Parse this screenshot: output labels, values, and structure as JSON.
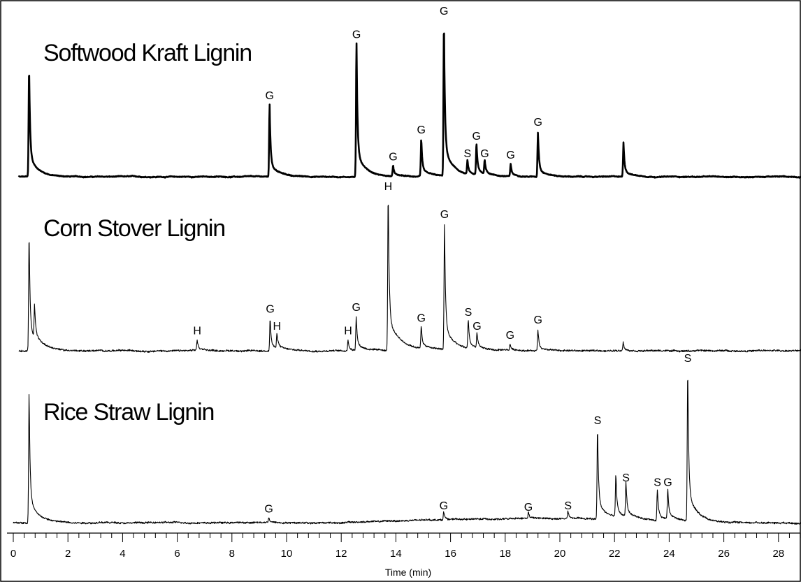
{
  "chart_data": {
    "type": "line",
    "title": "",
    "xlabel": "Time (min)",
    "ylabel": "",
    "xlim": [
      0,
      28.8
    ],
    "xticks": [
      0,
      2,
      4,
      6,
      8,
      10,
      12,
      14,
      16,
      18,
      20,
      22,
      24,
      26,
      28
    ],
    "series": [
      {
        "name": "Softwood Kraft Lignin",
        "peaks": [
          {
            "x": 0.58,
            "h": 0.71,
            "label": ""
          },
          {
            "x": 9.38,
            "h": 0.46,
            "label": "G"
          },
          {
            "x": 12.56,
            "h": 0.85,
            "label": "G"
          },
          {
            "x": 13.9,
            "h": 0.07,
            "label": "G"
          },
          {
            "x": 14.93,
            "h": 0.24,
            "label": "G"
          },
          {
            "x": 15.76,
            "h": 1.0,
            "label": "G"
          },
          {
            "x": 16.62,
            "h": 0.09,
            "label": "S"
          },
          {
            "x": 16.95,
            "h": 0.2,
            "label": "G"
          },
          {
            "x": 17.25,
            "h": 0.09,
            "label": "G"
          },
          {
            "x": 18.2,
            "h": 0.08,
            "label": "G"
          },
          {
            "x": 19.2,
            "h": 0.29,
            "label": "G"
          },
          {
            "x": 22.33,
            "h": 0.22,
            "label": ""
          }
        ]
      },
      {
        "name": "Corn Stover Lignin",
        "peaks": [
          {
            "x": 0.58,
            "h": 0.77,
            "label": ""
          },
          {
            "x": 0.78,
            "h": 0.22,
            "label": ""
          },
          {
            "x": 6.73,
            "h": 0.07,
            "label": "H"
          },
          {
            "x": 9.4,
            "h": 0.21,
            "label": "G"
          },
          {
            "x": 9.65,
            "h": 0.1,
            "label": "H"
          },
          {
            "x": 12.25,
            "h": 0.07,
            "label": "H"
          },
          {
            "x": 12.55,
            "h": 0.22,
            "label": "G"
          },
          {
            "x": 13.72,
            "h": 1.0,
            "label": "H"
          },
          {
            "x": 14.93,
            "h": 0.15,
            "label": "G"
          },
          {
            "x": 15.78,
            "h": 0.82,
            "label": "G"
          },
          {
            "x": 16.65,
            "h": 0.19,
            "label": "S"
          },
          {
            "x": 16.97,
            "h": 0.1,
            "label": "G"
          },
          {
            "x": 18.18,
            "h": 0.04,
            "label": "G"
          },
          {
            "x": 19.2,
            "h": 0.14,
            "label": "G"
          },
          {
            "x": 22.32,
            "h": 0.06,
            "label": ""
          }
        ]
      },
      {
        "name": "Rice Straw Lignin",
        "peaks": [
          {
            "x": 0.58,
            "h": 0.85,
            "label": ""
          },
          {
            "x": 9.35,
            "h": 0.03,
            "label": "G"
          },
          {
            "x": 15.75,
            "h": 0.05,
            "label": "G"
          },
          {
            "x": 18.85,
            "h": 0.04,
            "label": "G"
          },
          {
            "x": 20.3,
            "h": 0.05,
            "label": "S"
          },
          {
            "x": 21.38,
            "h": 0.6,
            "label": "S"
          },
          {
            "x": 22.05,
            "h": 0.28,
            "label": ""
          },
          {
            "x": 22.42,
            "h": 0.23,
            "label": "S"
          },
          {
            "x": 23.57,
            "h": 0.2,
            "label": "S"
          },
          {
            "x": 23.95,
            "h": 0.2,
            "label": "G"
          },
          {
            "x": 24.68,
            "h": 1.0,
            "label": "S"
          }
        ]
      }
    ]
  }
}
